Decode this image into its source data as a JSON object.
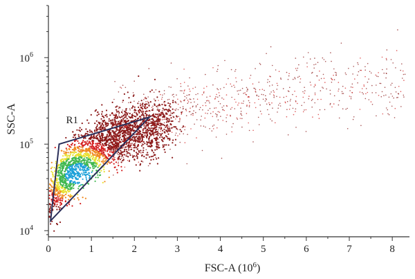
{
  "chart_data": {
    "type": "scatter",
    "subtype": "flow-cytometry density dot plot",
    "xlabel": "FSC-A (10",
    "xlabel_sup": "6",
    "xlabel_tail": ")",
    "ylabel": "SSC-A",
    "x_scale": "linear",
    "y_scale": "log",
    "xlim": [
      0,
      8.4
    ],
    "ylim": [
      8500,
      4000000
    ],
    "x_ticks": [
      0,
      1,
      2,
      3,
      4,
      5,
      6,
      7,
      8
    ],
    "x_tick_labels": [
      "0",
      "1",
      "2",
      "3",
      "4",
      "5",
      "6",
      "7",
      "8"
    ],
    "y_ticks": [
      {
        "value": 10000,
        "base": "10",
        "exp": "4"
      },
      {
        "value": 100000,
        "base": "10",
        "exp": "5"
      },
      {
        "value": 1000000,
        "base": "10",
        "exp": "6"
      }
    ],
    "grid": false,
    "colors": {
      "density_low": "#8b1a1a",
      "density_mid_low": "#d42020",
      "density_mid": "#f08a20",
      "density_mid_high": "#e8e030",
      "density_high": "#40b850",
      "density_peak": "#1aa0d8",
      "gate": "#2a2f5a",
      "axis": "#333333"
    },
    "gate": {
      "name": "R1",
      "vertices": [
        {
          "x": 0.05,
          "y": 13000
        },
        {
          "x": 0.25,
          "y": 100000
        },
        {
          "x": 2.35,
          "y": 205000
        }
      ]
    },
    "population": {
      "description": "dense cluster near x 0.3-1.5, y 2e4-1e5 with scattered events extending to x 8, y 1e6",
      "peak": {
        "x": 0.7,
        "y": 45000
      }
    }
  }
}
